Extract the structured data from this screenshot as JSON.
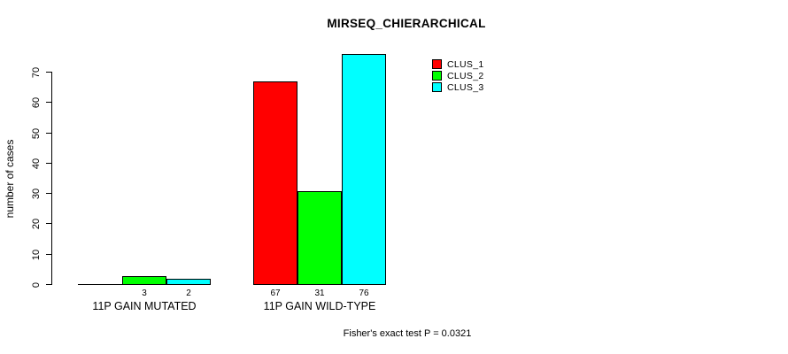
{
  "chart_data": {
    "type": "bar",
    "title": "MIRSEQ_CHIERARCHICAL",
    "xlabel": "",
    "ylabel": "number of cases",
    "ylim": [
      0,
      70
    ],
    "yticks": [
      0,
      10,
      20,
      30,
      40,
      50,
      60,
      70
    ],
    "grid": false,
    "legend_position": "top-right-inside",
    "annotation": "Fisher's exact test P = 0.0321",
    "categories": [
      "11P GAIN MUTATED",
      "11P GAIN WILD-TYPE"
    ],
    "series": [
      {
        "name": "CLUS_1",
        "color": "#ff0000",
        "values": [
          0,
          67
        ],
        "value_labels": [
          "",
          "67"
        ]
      },
      {
        "name": "CLUS_2",
        "color": "#00ff00",
        "values": [
          3,
          31
        ],
        "value_labels": [
          "3",
          "31"
        ]
      },
      {
        "name": "CLUS_3",
        "color": "#00ffff",
        "values": [
          2,
          76
        ],
        "value_labels": [
          "2",
          "76"
        ]
      }
    ]
  }
}
